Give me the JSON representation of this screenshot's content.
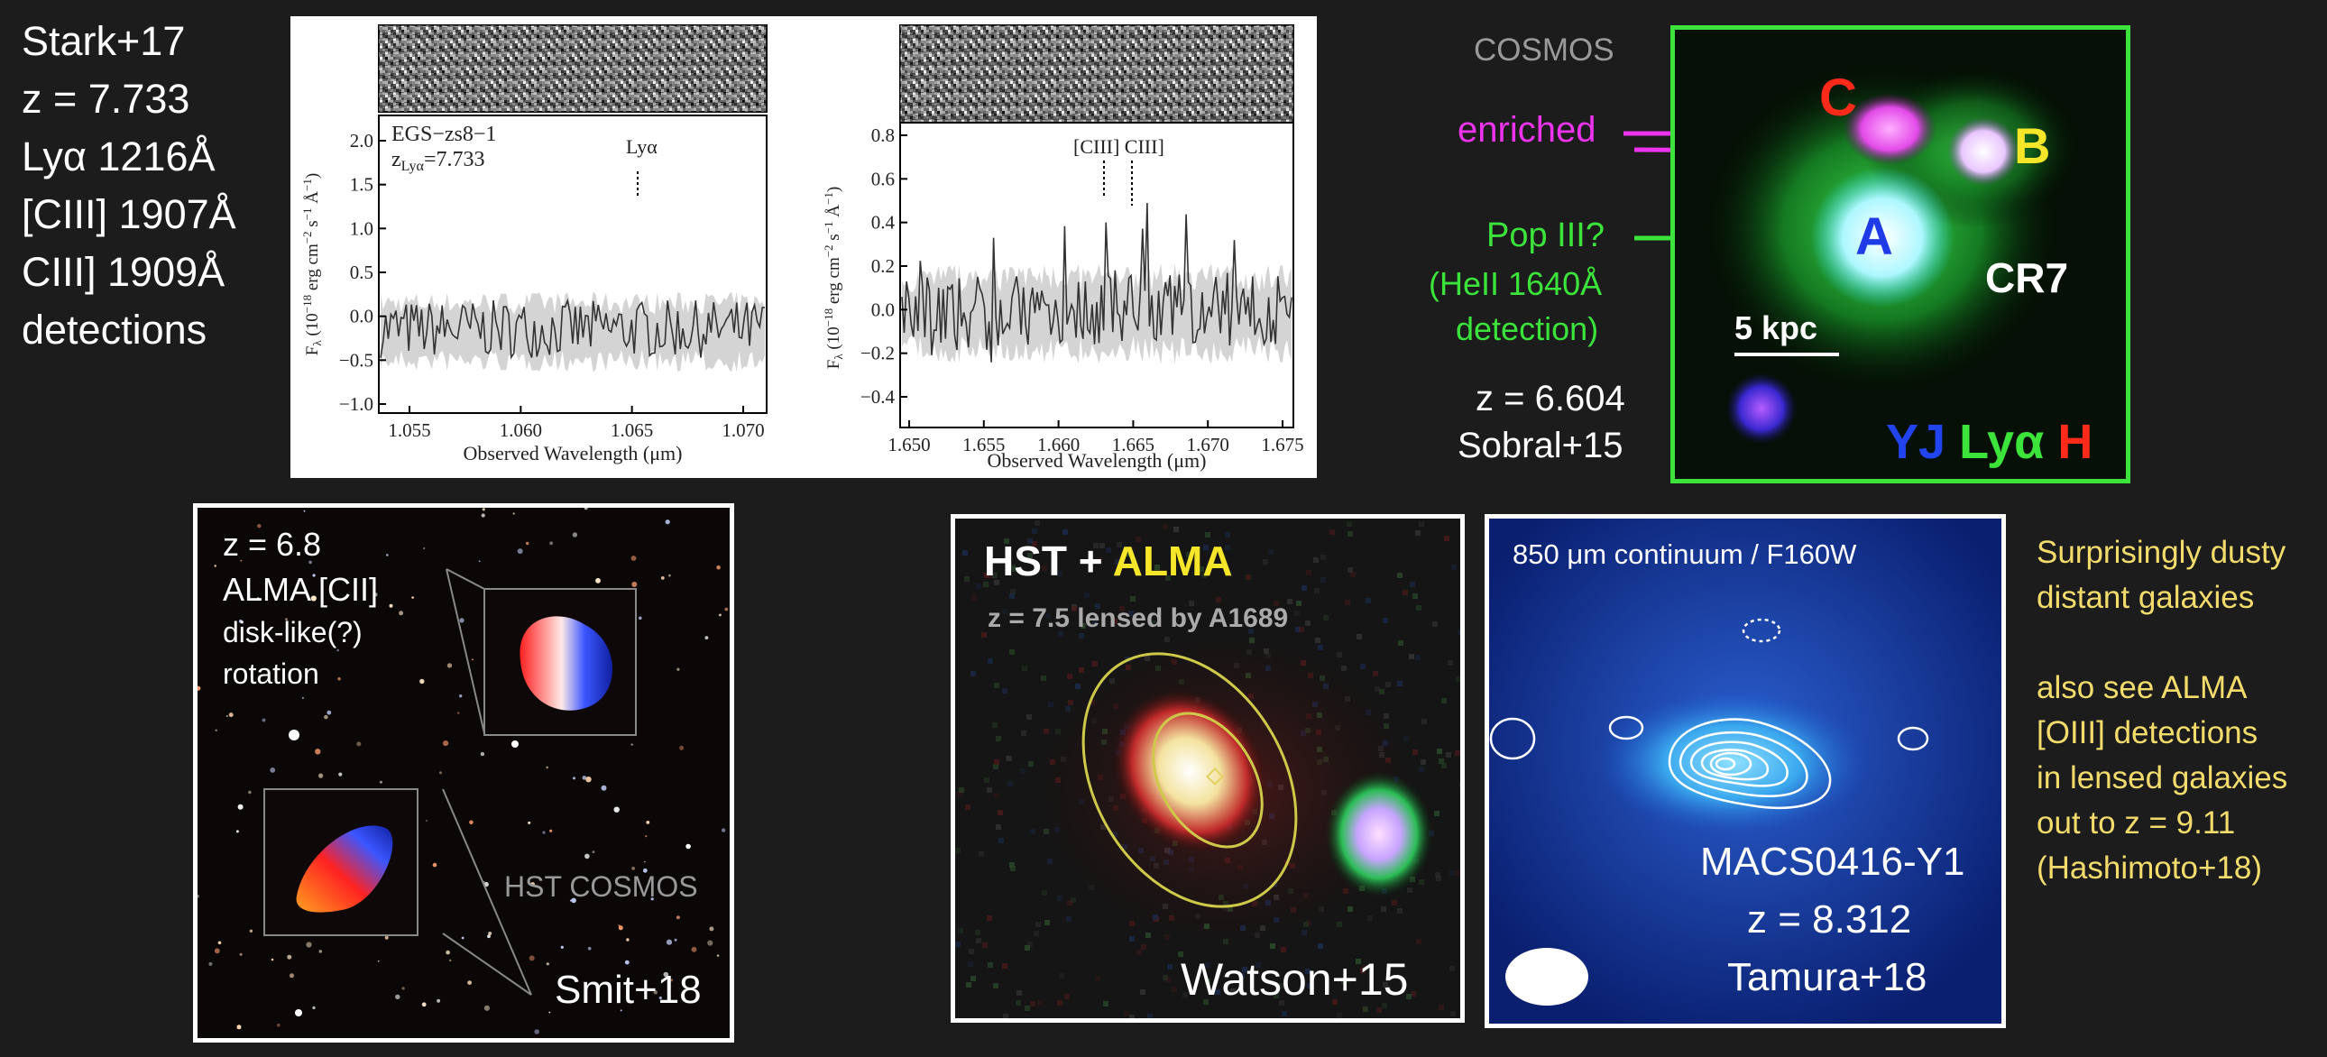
{
  "left_text": [
    "Stark+17",
    "z = 7.733",
    "Lyα 1216Å",
    "[CIII] 1907Å",
    "CIII] 1909Å",
    "detections"
  ],
  "spectrum_left": {
    "object": "EGS−zs8−1",
    "redshift_prefix": "z",
    "redshift_sub": "Lyα",
    "redshift_value": "=7.733",
    "line_label": "Lyα",
    "ylabel_F": "F",
    "ylabel_sub": "λ",
    "ylabel_units_a": " (10",
    "ylabel_exp": "−18",
    "ylabel_units_b": " erg cm",
    "ylabel_exp2": "−2",
    "ylabel_units_c": " s",
    "ylabel_exp3": "−1",
    "ylabel_units_d": " Å",
    "ylabel_exp4": "−1",
    "ylabel_units_e": ")",
    "xlabel": "Observed Wavelength (μm)",
    "yticks": [
      "2.0",
      "1.5",
      "1.0",
      "0.5",
      "0.0",
      "−0.5",
      "−1.0"
    ],
    "xticks": [
      "1.055",
      "1.060",
      "1.065",
      "1.070"
    ]
  },
  "spectrum_right": {
    "line_label": "[CIII] CIII]",
    "xlabel": "Observed Wavelength (μm)",
    "yticks": [
      "0.8",
      "0.6",
      "0.4",
      "0.2",
      "0.0",
      "−0.2",
      "−0.4"
    ],
    "xticks": [
      "1.650",
      "1.655",
      "1.660",
      "1.665",
      "1.670",
      "1.675"
    ]
  },
  "cr7": {
    "survey": "COSMOS",
    "enriched": "enriched",
    "pop3": "Pop III?",
    "heii_line1": "(HeII 1640Å",
    "heii_line2": "detection)",
    "redshift": "z = 6.604",
    "ref": "Sobral+15",
    "clump_a": "A",
    "clump_b": "B",
    "clump_c": "C",
    "name": "CR7",
    "scale": "5 kpc",
    "band_yj": "YJ",
    "band_lya": "Lyα",
    "band_h": "H",
    "colors": {
      "border": "#3be33b",
      "magenta": "#ee33ee",
      "green": "#3be33b",
      "red": "#ff2a1a",
      "yellow": "#f5e62a",
      "blue": "#2244ee"
    }
  },
  "smit": {
    "lines": [
      "z = 6.8",
      "ALMA [CII]",
      "disk-like(?)",
      "rotation"
    ],
    "survey": "HST COSMOS",
    "ref": "Smit+18"
  },
  "watson": {
    "title_a": "HST",
    "title_plus": " + ",
    "title_b": "ALMA",
    "subtitle": "z = 7.5 lensed by A1689",
    "ref": "Watson+15"
  },
  "tamura": {
    "title": "850 μm continuum / F160W",
    "name": "MACS0416-Y1",
    "redshift": "z = 8.312",
    "ref": "Tamura+18"
  },
  "dusty_notes": [
    "Surprisingly dusty",
    "distant galaxies",
    "",
    "also see ALMA",
    "[OIII] detections",
    "in lensed galaxies",
    "out to z = 9.11",
    "(Hashimoto+18)"
  ]
}
